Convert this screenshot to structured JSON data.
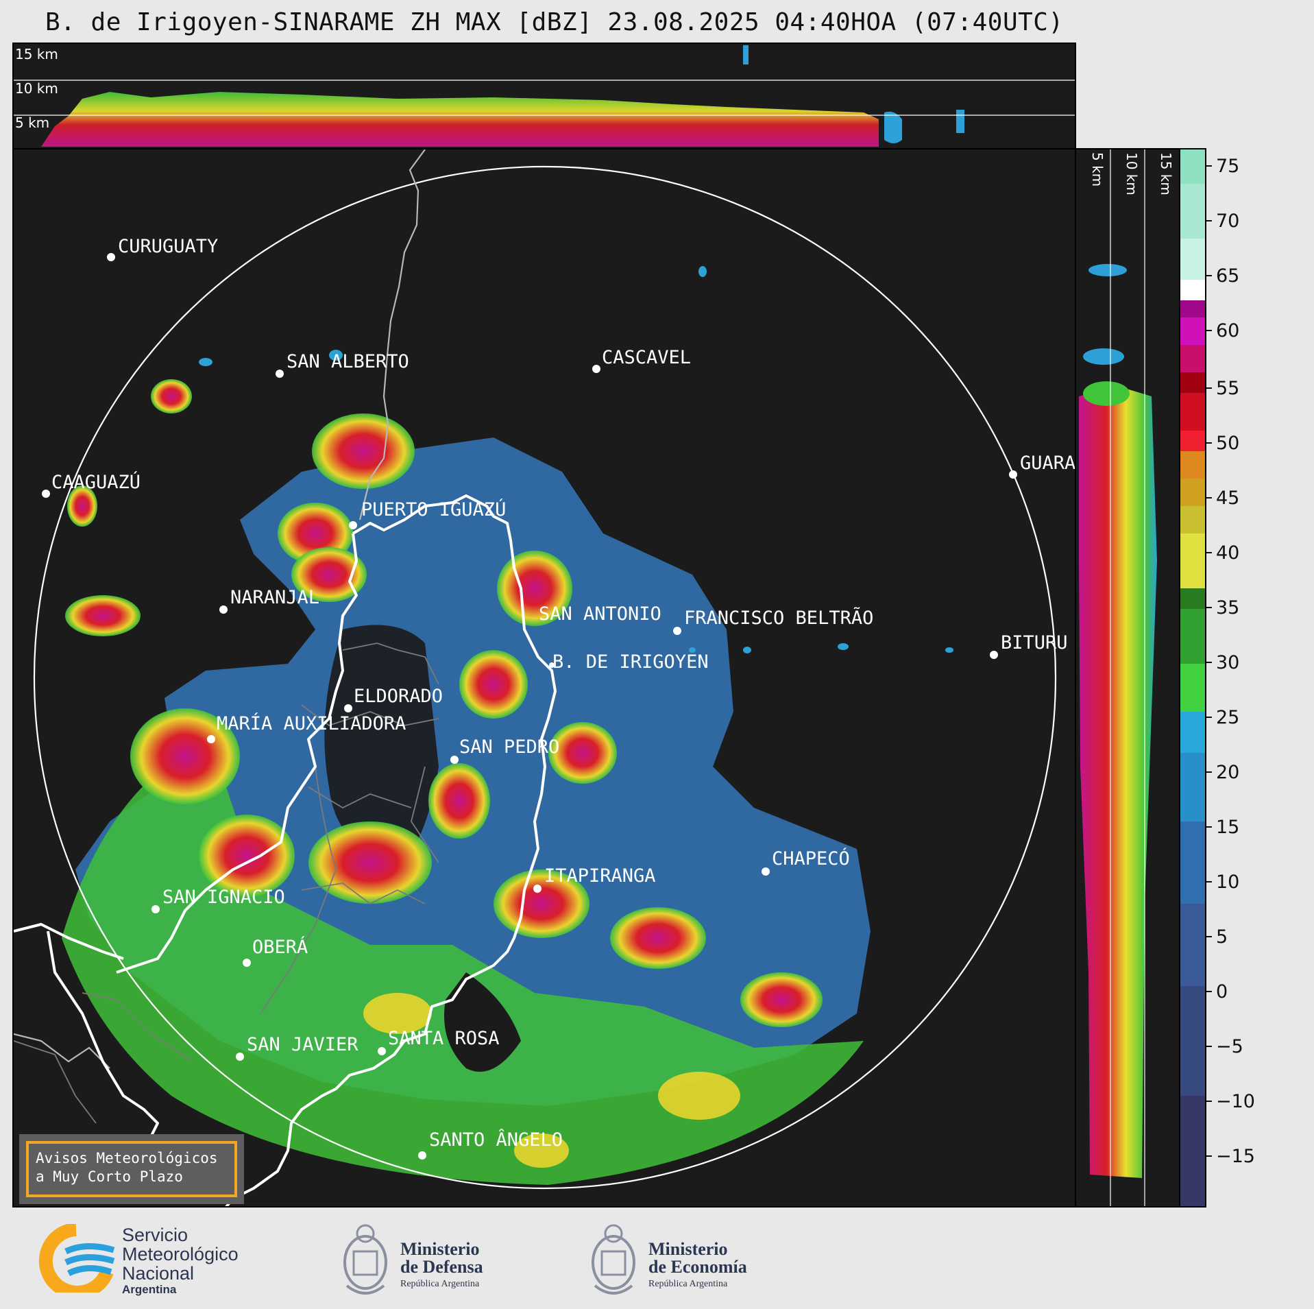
{
  "title": "B. de Irigoyen-SINARAME ZH MAX [dBZ] 23.08.2025 04:40HOA (07:40UTC)",
  "top_panel": {
    "altitude_labels": [
      "15 km",
      "10 km",
      "5 km"
    ]
  },
  "side_panel": {
    "altitude_labels": [
      "5 km",
      "10 km",
      "15 km"
    ]
  },
  "map": {
    "cities": [
      {
        "name": "CURUGUATY"
      },
      {
        "name": "SAN ALBERTO"
      },
      {
        "name": "CASCAVEL"
      },
      {
        "name": "CAAGUAZÚ"
      },
      {
        "name": "GUARA"
      },
      {
        "name": "PUERTO IGUAZÚ"
      },
      {
        "name": "NARANJAL"
      },
      {
        "name": "SAN ANTONIO"
      },
      {
        "name": "FRANCISCO BELTRÃO"
      },
      {
        "name": "BITURU"
      },
      {
        "name": "B. DE IRIGOYEN"
      },
      {
        "name": "ELDORADO"
      },
      {
        "name": "MARÍA AUXILIADORA"
      },
      {
        "name": "SAN PEDRO"
      },
      {
        "name": "CHAPECÓ"
      },
      {
        "name": "ITAPIRANGA"
      },
      {
        "name": "SAN IGNACIO"
      },
      {
        "name": "OBERÁ"
      },
      {
        "name": "SAN JAVIER"
      },
      {
        "name": "SANTA ROSA"
      },
      {
        "name": "SANTO ÂNGELO"
      }
    ]
  },
  "colorbar": {
    "unit": "dBZ",
    "ticks": [
      "75",
      "70",
      "65",
      "60",
      "55",
      "50",
      "45",
      "40",
      "35",
      "30",
      "25",
      "20",
      "15",
      "10",
      "5",
      "0",
      "−5",
      "−10",
      "−15"
    ],
    "range": [
      -20,
      77
    ]
  },
  "notice": {
    "line1": "Avisos Meteorológicos",
    "line2": "a Muy Corto Plazo"
  },
  "footer": {
    "smn_line1": "Servicio",
    "smn_line2": "Meteorológico",
    "smn_line3": "Nacional",
    "smn_line4": "Argentina",
    "defensa_line1": "Ministerio",
    "defensa_line2": "de Defensa",
    "defensa_sub": "República Argentina",
    "economia_line1": "Ministerio",
    "economia_line2": "de Economía",
    "economia_sub": "República Argentina"
  },
  "colors": {
    "background": "#1b1b1b",
    "page": "#e8e8e8",
    "notice_border": "#f5a623",
    "smn_orange": "#f7a81b",
    "smn_blue": "#2aa0dc"
  }
}
